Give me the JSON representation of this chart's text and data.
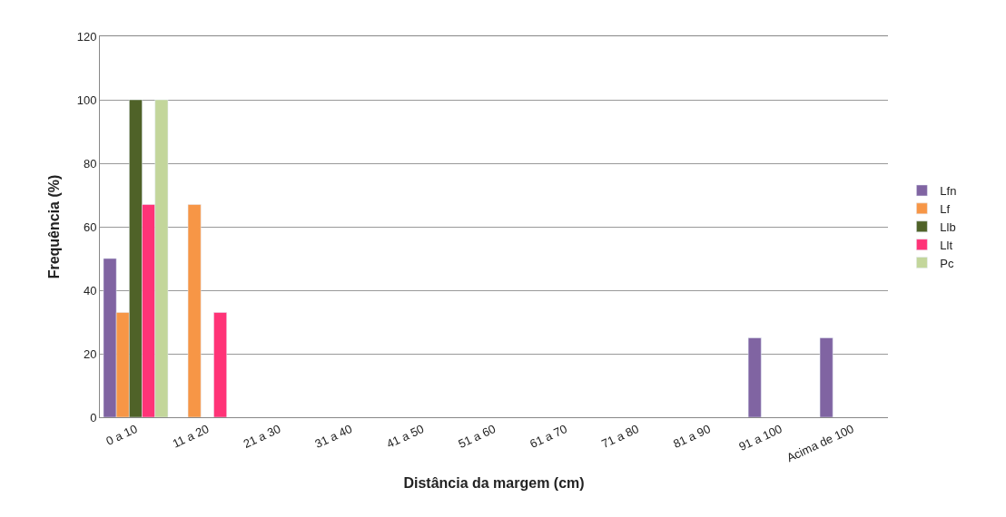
{
  "chart_data": {
    "type": "bar",
    "xlabel": "Distância da margem (cm)",
    "ylabel": "Frequência (%)",
    "categories": [
      "0 a 10",
      "11 a 20",
      "21 a 30",
      "31 a 40",
      "41 a 50",
      "51 a 60",
      "61 a 70",
      "71 a 80",
      "81 a 90",
      "91 a 100",
      "Acima de 100"
    ],
    "series": [
      {
        "name": "Lfn",
        "color": "#8064a2",
        "values": [
          50,
          null,
          null,
          null,
          null,
          null,
          null,
          null,
          null,
          25,
          25
        ]
      },
      {
        "name": "Lf",
        "color": "#f79646",
        "values": [
          33,
          67,
          null,
          null,
          null,
          null,
          null,
          null,
          null,
          null,
          null
        ]
      },
      {
        "name": "Llb",
        "color": "#4f6228",
        "values": [
          100,
          null,
          null,
          null,
          null,
          null,
          null,
          null,
          null,
          null,
          null
        ]
      },
      {
        "name": "Llt",
        "color": "#ff3377",
        "values": [
          67,
          33,
          null,
          null,
          null,
          null,
          null,
          null,
          null,
          null,
          null
        ]
      },
      {
        "name": "Pc",
        "color": "#c3d69b",
        "values": [
          100,
          null,
          null,
          null,
          null,
          null,
          null,
          null,
          null,
          null,
          null
        ]
      }
    ],
    "ylim": [
      0,
      120
    ],
    "yticks": [
      0,
      20,
      40,
      60,
      80,
      100,
      120
    ],
    "grid": "y",
    "legend": "right"
  }
}
